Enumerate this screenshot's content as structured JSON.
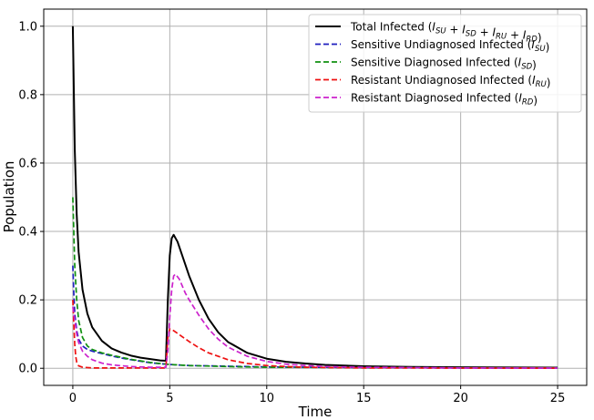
{
  "chart_data": {
    "type": "line",
    "title": "",
    "xlabel": "Time",
    "ylabel": "Population",
    "xlim": [
      -1.5,
      26.5
    ],
    "ylim": [
      -0.05,
      1.05
    ],
    "xticks": [
      0,
      5,
      10,
      15,
      20,
      25
    ],
    "yticks": [
      0.0,
      0.2,
      0.4,
      0.6,
      0.8,
      1.0
    ],
    "xtick_labels": [
      "0",
      "5",
      "10",
      "15",
      "20",
      "25"
    ],
    "ytick_labels": [
      "0.0",
      "0.2",
      "0.4",
      "0.6",
      "0.8",
      "1.0"
    ],
    "grid": true,
    "legend_position": "top-right",
    "series": [
      {
        "name": "Total Infected",
        "legend_main": "Total Infected (",
        "legend_math": "I_{SU} + I_{SD} + I_{RU} + I_{RD}",
        "legend_end": ")",
        "color": "#000000",
        "dash": "solid",
        "x": [
          0,
          0.1,
          0.2,
          0.3,
          0.5,
          0.75,
          1.0,
          1.5,
          2.0,
          2.5,
          3.0,
          3.5,
          4.0,
          4.5,
          4.8,
          4.9,
          5.0,
          5.1,
          5.2,
          5.4,
          5.7,
          6.0,
          6.5,
          7.0,
          7.5,
          8.0,
          9.0,
          10.0,
          11.0,
          12.0,
          13.0,
          15.0,
          17.5,
          20.0,
          25.0
        ],
        "y": [
          1.0,
          0.64,
          0.45,
          0.34,
          0.23,
          0.16,
          0.12,
          0.08,
          0.058,
          0.046,
          0.037,
          0.031,
          0.027,
          0.023,
          0.022,
          0.2,
          0.33,
          0.38,
          0.39,
          0.37,
          0.32,
          0.27,
          0.2,
          0.145,
          0.105,
          0.077,
          0.045,
          0.028,
          0.019,
          0.014,
          0.01,
          0.006,
          0.004,
          0.003,
          0.002
        ]
      },
      {
        "name": "Sensitive Undiagnosed Infected",
        "legend_main": "Sensitive Undiagnosed Infected (",
        "legend_math": "I_{SU}",
        "legend_end": ")",
        "color": "#1f1fbf",
        "dash": "dashed",
        "x": [
          0,
          0.05,
          0.1,
          0.2,
          0.3,
          0.5,
          0.75,
          1.0,
          1.5,
          2.0,
          2.5,
          3.0,
          4.0,
          5.0,
          6.0,
          8.0,
          10.0,
          15.0,
          20.0,
          25.0
        ],
        "y": [
          0.3,
          0.22,
          0.16,
          0.11,
          0.085,
          0.065,
          0.055,
          0.05,
          0.043,
          0.036,
          0.03,
          0.025,
          0.016,
          0.011,
          0.008,
          0.006,
          0.004,
          0.002,
          0.001,
          0.0005
        ]
      },
      {
        "name": "Sensitive Diagnosed Infected",
        "legend_main": "Sensitive Diagnosed Infected (",
        "legend_math": "I_{SD}",
        "legend_end": ")",
        "color": "#109010",
        "dash": "dashed",
        "x": [
          0,
          0.1,
          0.2,
          0.3,
          0.5,
          0.75,
          1.0,
          1.5,
          2.0,
          2.5,
          3.0,
          4.0,
          5.0,
          6.0,
          8.0,
          10.0,
          15.0,
          20.0,
          25.0
        ],
        "y": [
          0.5,
          0.3,
          0.2,
          0.14,
          0.09,
          0.065,
          0.055,
          0.045,
          0.038,
          0.032,
          0.026,
          0.017,
          0.011,
          0.008,
          0.005,
          0.003,
          0.002,
          0.001,
          0.0005
        ]
      },
      {
        "name": "Resistant Undiagnosed Infected",
        "legend_main": "Resistant Undiagnosed Infected (",
        "legend_math": "I_{RU}",
        "legend_end": ")",
        "color": "#ee1111",
        "dash": "dashed",
        "x": [
          0,
          0.05,
          0.1,
          0.15,
          0.2,
          0.3,
          0.5,
          1.0,
          2.0,
          3.0,
          4.0,
          4.8,
          4.9,
          5.0,
          5.2,
          5.5,
          6.0,
          6.5,
          7.0,
          8.0,
          9.0,
          10.0,
          11.0,
          12.0,
          15.0,
          20.0,
          25.0
        ],
        "y": [
          0.2,
          0.13,
          0.07,
          0.035,
          0.018,
          0.007,
          0.003,
          0.001,
          0.001,
          0.001,
          0.001,
          0.001,
          0.09,
          0.115,
          0.11,
          0.098,
          0.078,
          0.06,
          0.045,
          0.025,
          0.014,
          0.008,
          0.005,
          0.003,
          0.001,
          0.0005,
          0.0002
        ]
      },
      {
        "name": "Resistant Diagnosed Infected",
        "legend_main": "Resistant Diagnosed Infected (",
        "legend_math": "I_{RD}",
        "legend_end": ")",
        "color": "#cc22cc",
        "dash": "dashed",
        "x": [
          0,
          0.05,
          0.1,
          0.15,
          0.2,
          0.3,
          0.5,
          0.75,
          1.0,
          1.5,
          2.0,
          3.0,
          4.0,
          4.8,
          4.9,
          5.0,
          5.1,
          5.2,
          5.3,
          5.5,
          5.8,
          6.0,
          6.5,
          7.0,
          7.5,
          8.0,
          9.0,
          10.0,
          11.0,
          12.0,
          13.0,
          15.0,
          20.0,
          25.0
        ],
        "y": [
          0.18,
          0.16,
          0.14,
          0.12,
          0.1,
          0.075,
          0.05,
          0.035,
          0.025,
          0.015,
          0.01,
          0.005,
          0.003,
          0.003,
          0.05,
          0.15,
          0.23,
          0.27,
          0.275,
          0.26,
          0.22,
          0.2,
          0.155,
          0.115,
          0.085,
          0.062,
          0.035,
          0.02,
          0.012,
          0.008,
          0.005,
          0.003,
          0.001,
          0.0005
        ]
      }
    ]
  }
}
